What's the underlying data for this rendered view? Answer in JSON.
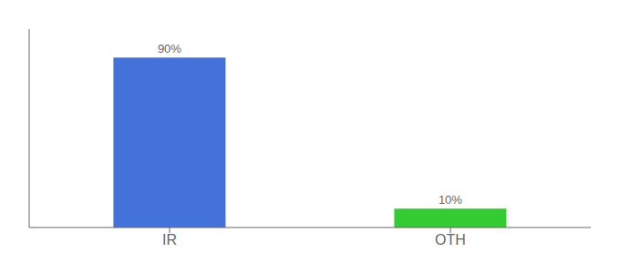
{
  "chart_data": {
    "type": "bar",
    "categories": [
      "IR",
      "OTH"
    ],
    "values": [
      90,
      10
    ],
    "value_labels": [
      "90%",
      "10%"
    ],
    "colors": [
      "#4472DB",
      "#33CC33"
    ],
    "ylim": [
      0,
      105
    ],
    "data_labels": true,
    "tick_labels": "x"
  }
}
